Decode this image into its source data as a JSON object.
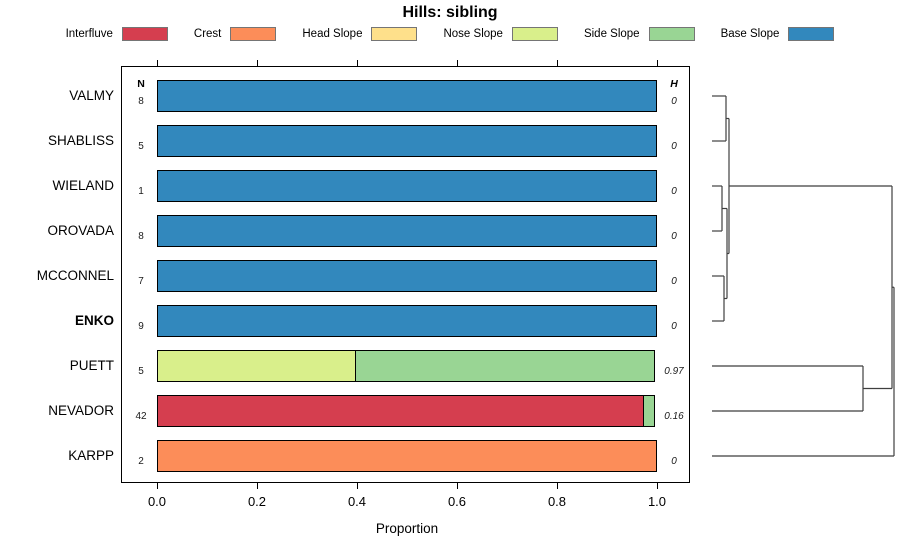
{
  "title": "Hills: sibling",
  "legend": [
    {
      "label": "Interfluve",
      "color": "#D53E4F"
    },
    {
      "label": "Crest",
      "color": "#FC8D59"
    },
    {
      "label": "Head Slope",
      "color": "#FEE08B"
    },
    {
      "label": "Nose Slope",
      "color": "#D9EF8B"
    },
    {
      "label": "Side Slope",
      "color": "#99D594"
    },
    {
      "label": "Base Slope",
      "color": "#3288BD"
    }
  ],
  "columns": {
    "n_header": "N",
    "h_header": "H"
  },
  "axis": {
    "label": "Proportion",
    "ticks": [
      "0.0",
      "0.2",
      "0.4",
      "0.6",
      "0.8",
      "1.0"
    ]
  },
  "chart_data": {
    "type": "bar",
    "stacked": true,
    "orientation": "horizontal",
    "title": "Hills: sibling",
    "xlabel": "Proportion",
    "xlim": [
      0,
      1
    ],
    "grid": false,
    "legend_position": "top",
    "categories": [
      "VALMY",
      "SHABLISS",
      "WIELAND",
      "OROVADA",
      "MCCONNEL",
      "ENKO",
      "PUETT",
      "NEVADOR",
      "KARPP"
    ],
    "highlighted_category": "ENKO",
    "n_values": [
      "8",
      "5",
      "1",
      "8",
      "7",
      "9",
      "5",
      "42",
      "2"
    ],
    "h_values": [
      "0",
      "0",
      "0",
      "0",
      "0",
      "0",
      "0.97",
      "0.16",
      "0"
    ],
    "series": [
      {
        "name": "Interfluve",
        "values": [
          0,
          0,
          0,
          0,
          0,
          0,
          0,
          0.976,
          0
        ]
      },
      {
        "name": "Crest",
        "values": [
          0,
          0,
          0,
          0,
          0,
          0,
          0,
          0,
          1
        ]
      },
      {
        "name": "Head Slope",
        "values": [
          0,
          0,
          0,
          0,
          0,
          0,
          0,
          0,
          0
        ]
      },
      {
        "name": "Nose Slope",
        "values": [
          0,
          0,
          0,
          0,
          0,
          0,
          0.4,
          0,
          0
        ]
      },
      {
        "name": "Side Slope",
        "values": [
          0,
          0,
          0,
          0,
          0,
          0,
          0.6,
          0.024,
          0
        ]
      },
      {
        "name": "Base Slope",
        "values": [
          1,
          1,
          1,
          1,
          1,
          1,
          0,
          0,
          0
        ]
      }
    ],
    "dendrogram": {
      "merges": [
        {
          "id": "m0",
          "children": [
            "VALMY",
            "SHABLISS"
          ],
          "x": 726
        },
        {
          "id": "m1",
          "children": [
            "WIELAND",
            "OROVADA"
          ],
          "x": 722
        },
        {
          "id": "m2",
          "children": [
            "MCCONNEL",
            "ENKO"
          ],
          "x": 724
        },
        {
          "id": "m3",
          "children": [
            "m1",
            "m2"
          ],
          "x": 727
        },
        {
          "id": "m4",
          "children": [
            "m0",
            "m3"
          ],
          "x": 729
        },
        {
          "id": "m5",
          "children": [
            "PUETT",
            "NEVADOR"
          ],
          "x": 863
        },
        {
          "id": "m6",
          "children": [
            "m4",
            "m5"
          ],
          "x": 892
        },
        {
          "id": "m7",
          "children": [
            "m6",
            "KARPP"
          ],
          "x": 894
        }
      ]
    }
  }
}
